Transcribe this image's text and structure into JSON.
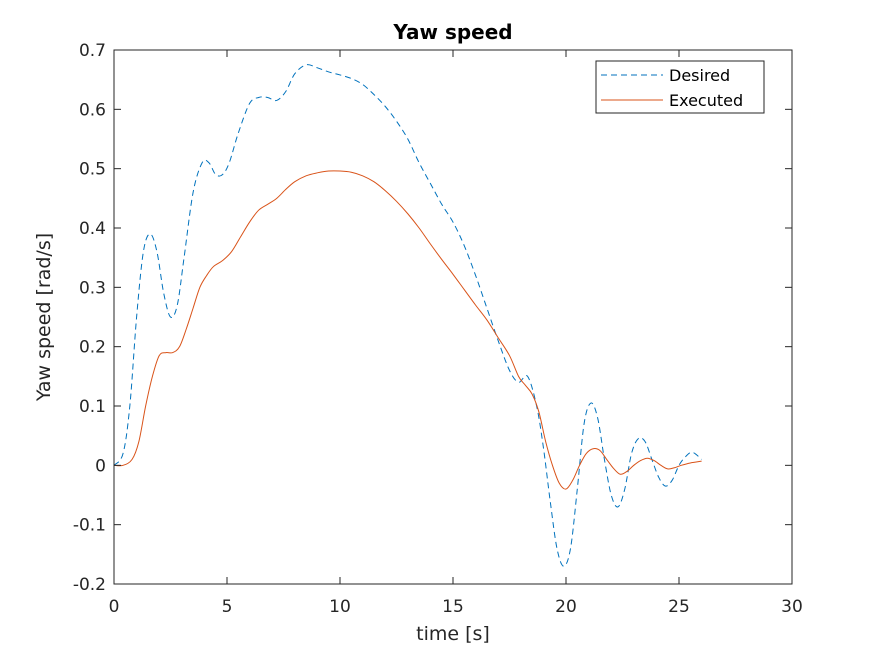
{
  "chart_data": {
    "type": "line",
    "title": "Yaw speed",
    "xlabel": "time [s]",
    "ylabel": "Yaw speed [rad/s]",
    "xlim": [
      0,
      30
    ],
    "ylim": [
      -0.2,
      0.7
    ],
    "xticks": [
      0,
      5,
      10,
      15,
      20,
      25,
      30
    ],
    "yticks": [
      -0.2,
      -0.1,
      0,
      0.1,
      0.2,
      0.3,
      0.4,
      0.5,
      0.6,
      0.7
    ],
    "xtick_labels": [
      "0",
      "5",
      "10",
      "15",
      "20",
      "25",
      "30"
    ],
    "ytick_labels": [
      "-0.2",
      "-0.1",
      "0",
      "0.1",
      "0.2",
      "0.3",
      "0.4",
      "0.5",
      "0.6",
      "0.7"
    ],
    "grid": false,
    "legend": {
      "position": "top-right",
      "entries": [
        "Desired",
        "Executed"
      ]
    },
    "series": [
      {
        "name": "Desired",
        "color": "#0072BD",
        "style": "dashed",
        "points": [
          [
            0,
            0
          ],
          [
            0.4,
            0.02
          ],
          [
            0.7,
            0.1
          ],
          [
            1.0,
            0.25
          ],
          [
            1.3,
            0.36
          ],
          [
            1.6,
            0.39
          ],
          [
            1.9,
            0.36
          ],
          [
            2.2,
            0.29
          ],
          [
            2.5,
            0.25
          ],
          [
            2.8,
            0.27
          ],
          [
            3.1,
            0.35
          ],
          [
            3.5,
            0.46
          ],
          [
            3.9,
            0.51
          ],
          [
            4.2,
            0.51
          ],
          [
            4.5,
            0.49
          ],
          [
            4.8,
            0.49
          ],
          [
            5.1,
            0.51
          ],
          [
            5.5,
            0.56
          ],
          [
            6.0,
            0.61
          ],
          [
            6.4,
            0.62
          ],
          [
            6.8,
            0.62
          ],
          [
            7.2,
            0.615
          ],
          [
            7.6,
            0.63
          ],
          [
            8.0,
            0.66
          ],
          [
            8.5,
            0.675
          ],
          [
            9.0,
            0.67
          ],
          [
            9.5,
            0.663
          ],
          [
            10.0,
            0.658
          ],
          [
            10.5,
            0.652
          ],
          [
            11.0,
            0.642
          ],
          [
            11.5,
            0.625
          ],
          [
            12.0,
            0.605
          ],
          [
            12.5,
            0.58
          ],
          [
            13.0,
            0.55
          ],
          [
            13.5,
            0.51
          ],
          [
            14.0,
            0.475
          ],
          [
            14.5,
            0.44
          ],
          [
            15.0,
            0.41
          ],
          [
            15.5,
            0.37
          ],
          [
            16.0,
            0.32
          ],
          [
            16.5,
            0.265
          ],
          [
            17.0,
            0.21
          ],
          [
            17.5,
            0.16
          ],
          [
            17.9,
            0.14
          ],
          [
            18.3,
            0.15
          ],
          [
            18.7,
            0.1
          ],
          [
            19.0,
            0.03
          ],
          [
            19.3,
            -0.06
          ],
          [
            19.6,
            -0.14
          ],
          [
            19.9,
            -0.17
          ],
          [
            20.2,
            -0.14
          ],
          [
            20.5,
            -0.04
          ],
          [
            20.8,
            0.07
          ],
          [
            21.1,
            0.105
          ],
          [
            21.4,
            0.08
          ],
          [
            21.7,
            0.01
          ],
          [
            22.0,
            -0.05
          ],
          [
            22.3,
            -0.07
          ],
          [
            22.6,
            -0.04
          ],
          [
            22.9,
            0.02
          ],
          [
            23.2,
            0.045
          ],
          [
            23.5,
            0.04
          ],
          [
            23.8,
            0.01
          ],
          [
            24.1,
            -0.02
          ],
          [
            24.4,
            -0.035
          ],
          [
            24.7,
            -0.025
          ],
          [
            25.0,
            0.0
          ],
          [
            25.3,
            0.015
          ],
          [
            25.6,
            0.022
          ],
          [
            26.0,
            0.01
          ]
        ]
      },
      {
        "name": "Executed",
        "color": "#D95319",
        "style": "solid",
        "points": [
          [
            0,
            0
          ],
          [
            0.4,
            0.0
          ],
          [
            0.8,
            0.01
          ],
          [
            1.1,
            0.04
          ],
          [
            1.4,
            0.1
          ],
          [
            1.7,
            0.15
          ],
          [
            2.0,
            0.185
          ],
          [
            2.3,
            0.19
          ],
          [
            2.6,
            0.19
          ],
          [
            2.9,
            0.2
          ],
          [
            3.2,
            0.23
          ],
          [
            3.5,
            0.265
          ],
          [
            3.8,
            0.3
          ],
          [
            4.1,
            0.32
          ],
          [
            4.4,
            0.335
          ],
          [
            4.8,
            0.345
          ],
          [
            5.2,
            0.36
          ],
          [
            5.6,
            0.385
          ],
          [
            6.0,
            0.41
          ],
          [
            6.4,
            0.43
          ],
          [
            6.8,
            0.44
          ],
          [
            7.2,
            0.45
          ],
          [
            7.6,
            0.465
          ],
          [
            8.0,
            0.478
          ],
          [
            8.5,
            0.488
          ],
          [
            9.0,
            0.493
          ],
          [
            9.5,
            0.496
          ],
          [
            10.0,
            0.496
          ],
          [
            10.5,
            0.494
          ],
          [
            11.0,
            0.488
          ],
          [
            11.5,
            0.478
          ],
          [
            12.0,
            0.463
          ],
          [
            12.5,
            0.445
          ],
          [
            13.0,
            0.424
          ],
          [
            13.5,
            0.4
          ],
          [
            14.0,
            0.373
          ],
          [
            14.5,
            0.347
          ],
          [
            15.0,
            0.322
          ],
          [
            15.5,
            0.296
          ],
          [
            16.0,
            0.27
          ],
          [
            16.5,
            0.245
          ],
          [
            17.0,
            0.215
          ],
          [
            17.5,
            0.185
          ],
          [
            17.9,
            0.15
          ],
          [
            18.2,
            0.135
          ],
          [
            18.5,
            0.12
          ],
          [
            18.8,
            0.09
          ],
          [
            19.1,
            0.04
          ],
          [
            19.4,
            0.0
          ],
          [
            19.7,
            -0.03
          ],
          [
            20.0,
            -0.04
          ],
          [
            20.3,
            -0.025
          ],
          [
            20.6,
            0.0
          ],
          [
            20.9,
            0.02
          ],
          [
            21.2,
            0.028
          ],
          [
            21.5,
            0.025
          ],
          [
            21.8,
            0.01
          ],
          [
            22.1,
            -0.005
          ],
          [
            22.4,
            -0.015
          ],
          [
            22.7,
            -0.01
          ],
          [
            23.0,
            0.0
          ],
          [
            23.3,
            0.008
          ],
          [
            23.6,
            0.012
          ],
          [
            23.9,
            0.008
          ],
          [
            24.2,
            0.0
          ],
          [
            24.5,
            -0.006
          ],
          [
            24.8,
            -0.004
          ],
          [
            25.1,
            0.0
          ],
          [
            25.5,
            0.004
          ],
          [
            26.0,
            0.007
          ]
        ]
      }
    ]
  }
}
